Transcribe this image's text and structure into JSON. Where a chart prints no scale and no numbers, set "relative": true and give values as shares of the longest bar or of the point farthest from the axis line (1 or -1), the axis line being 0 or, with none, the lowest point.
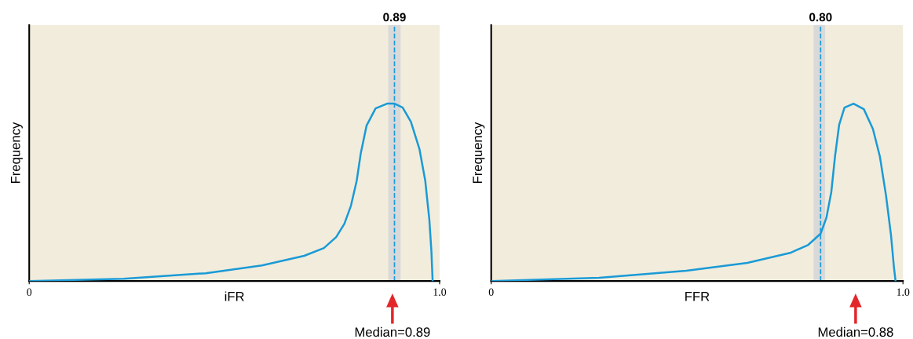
{
  "chart_data": [
    {
      "type": "line",
      "relative": true,
      "xlabel": "iFR",
      "ylabel": "Frequency",
      "xlim": [
        0,
        1.0
      ],
      "xticks": [
        0,
        {
          "value": 1.0,
          "label": "1.0"
        }
      ],
      "grid": false,
      "legend": false,
      "marker": "none",
      "line_style": "solid",
      "series": [
        {
          "color": "#1a9ad6",
          "x": [
            0,
            0.23,
            0.43,
            0.567,
            0.67,
            0.718,
            0.748,
            0.768,
            0.784,
            0.798,
            0.808,
            0.822,
            0.844,
            0.872,
            0.89,
            0.91,
            0.93,
            0.951,
            0.965,
            0.975,
            0.98,
            0.983
          ],
          "values": [
            0,
            0.013,
            0.044,
            0.088,
            0.142,
            0.186,
            0.248,
            0.323,
            0.425,
            0.566,
            0.721,
            0.876,
            0.973,
            1.0,
            1.0,
            0.978,
            0.898,
            0.743,
            0.566,
            0.345,
            0.168,
            0
          ]
        }
      ],
      "ref_lines": [
        {
          "axis": "x",
          "value": 0.89,
          "label": "0.89",
          "color": "#1a9ad6",
          "line_style": "dashed"
        }
      ],
      "bands": [
        {
          "axis": "x",
          "from": 0.875,
          "to": 0.905,
          "color": "#d9d9d9"
        }
      ],
      "annotations": [
        "Median=0.89"
      ]
    },
    {
      "type": "line",
      "relative": true,
      "xlabel": "FFR",
      "ylabel": "Frequency",
      "xlim": [
        0,
        1.0
      ],
      "xticks": [
        0,
        {
          "value": 1.0,
          "label": "1.0"
        }
      ],
      "grid": false,
      "legend": false,
      "marker": "none",
      "line_style": "solid",
      "series": [
        {
          "color": "#1a9ad6",
          "x": [
            0,
            0.262,
            0.474,
            0.622,
            0.728,
            0.77,
            0.8,
            0.814,
            0.826,
            0.835,
            0.845,
            0.858,
            0.88,
            0.905,
            0.927,
            0.944,
            0.959,
            0.971,
            0.978,
            0.982
          ],
          "values": [
            0,
            0.018,
            0.058,
            0.102,
            0.16,
            0.204,
            0.267,
            0.356,
            0.502,
            0.702,
            0.88,
            0.978,
            1.0,
            0.969,
            0.858,
            0.702,
            0.48,
            0.258,
            0.08,
            0
          ]
        }
      ],
      "ref_lines": [
        {
          "axis": "x",
          "value": 0.8,
          "label": "0.80",
          "color": "#1a9ad6",
          "line_style": "dashed"
        }
      ],
      "bands": [
        {
          "axis": "x",
          "from": 0.783,
          "to": 0.811,
          "color": "#d9d9d9"
        }
      ],
      "annotations": [
        "Median=0.88"
      ]
    }
  ]
}
